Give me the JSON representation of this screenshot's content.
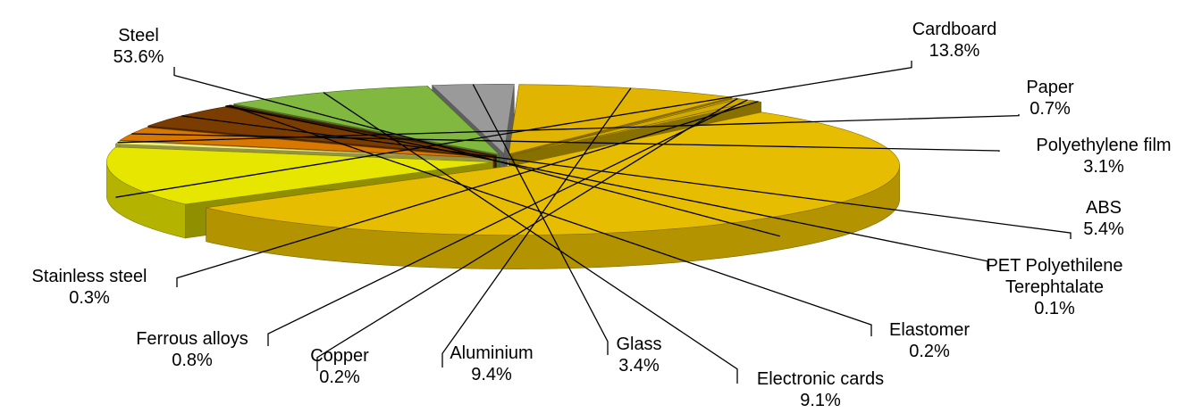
{
  "chart_data": {
    "type": "pie3d",
    "categories": [
      "Steel",
      "Cardboard",
      "Paper",
      "Polyethylene film",
      "ABS",
      "PET Polyethilene Terephtalate",
      "Elastomer",
      "Electronic cards",
      "Glass",
      "Aluminium",
      "Copper",
      "Ferrous alloys",
      "Stainless steel"
    ],
    "values": [
      53.6,
      13.8,
      0.7,
      3.1,
      5.4,
      0.1,
      0.2,
      9.1,
      3.4,
      9.4,
      0.2,
      0.8,
      0.3
    ],
    "value_labels": [
      "53.6%",
      "13.8%",
      "0.7%",
      "3.1%",
      "5.4%",
      "0.1%",
      "0.2%",
      "9.1%",
      "3.4%",
      "9.4%",
      "0.2%",
      "0.8%",
      "0.3%"
    ],
    "colors": [
      "#e6bd00",
      "#e6e600",
      "#eeee70",
      "#d97800",
      "#7a3c00",
      "#5a2a00",
      "#6b3a10",
      "#80b840",
      "#9a9a9a",
      "#e0b400",
      "#d8b000",
      "#d2aa00",
      "#dcb400"
    ]
  }
}
